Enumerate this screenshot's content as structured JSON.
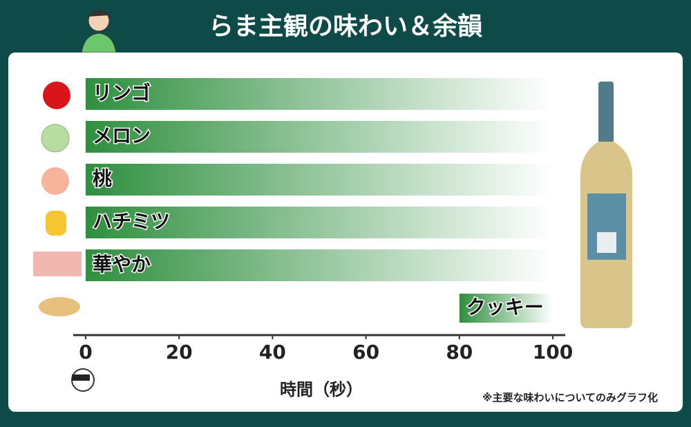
{
  "chart_data": {
    "type": "rangebar",
    "title": "らま主観の味わい＆余韻",
    "categories": [
      "リンゴ",
      "メロン",
      "桃",
      "ハチミツ",
      "華やか",
      "クッキー"
    ],
    "starts": [
      0,
      0,
      0,
      0,
      0,
      80
    ],
    "ends": [
      100,
      100,
      100,
      100,
      100,
      100
    ],
    "color": "#2f8f3f",
    "xlim": [
      0,
      100
    ],
    "xticks": [
      0,
      20,
      40,
      60,
      80,
      100
    ],
    "xlabel": "時間（秒）",
    "note": "※主要な味わいについてのみグラフ化"
  }
}
